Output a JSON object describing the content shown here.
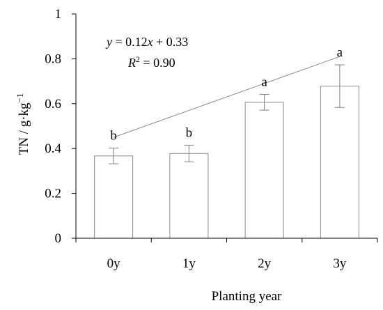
{
  "chart_data": {
    "type": "bar",
    "title": "",
    "xlabel": "Planting year",
    "ylabel": "TN / g·kg",
    "ylabel_exponent": "−1",
    "categories": [
      "0y",
      "1y",
      "2y",
      "3y"
    ],
    "values": [
      0.367,
      0.378,
      0.606,
      0.678
    ],
    "error": [
      0.035,
      0.037,
      0.035,
      0.095
    ],
    "significance": [
      "b",
      "b",
      "a",
      "a"
    ],
    "ylim": [
      0,
      1
    ],
    "yticks": [
      "0",
      "0.2",
      "0.4",
      "0.6",
      "0.8",
      "1"
    ],
    "trendline": {
      "slope": 0.12,
      "intercept": 0.33,
      "x_start": 0,
      "x_end": 3
    },
    "equation": {
      "y": "y",
      "eq_rest": " = 0.12",
      "x": "x",
      "tail": " + 0.33",
      "r": "R",
      "r_exp": "2",
      "r_rest": " = 0.90"
    },
    "grid": false,
    "legend": "none",
    "colors": {
      "bar_fill": "#ffffff",
      "bar_stroke": "#8c8c8c",
      "error_bar": "#7f7f7f",
      "trendline": "#8c8c8c",
      "axis": "#000000"
    }
  }
}
